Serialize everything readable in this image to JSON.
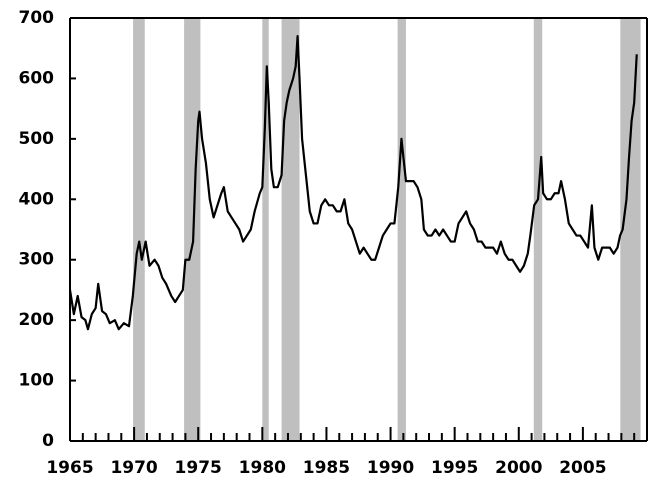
{
  "chart_data": {
    "type": "line",
    "x": [
      1965.0,
      1965.3,
      1965.6,
      1965.9,
      1966.2,
      1966.4,
      1966.7,
      1967.0,
      1967.2,
      1967.5,
      1967.8,
      1968.1,
      1968.5,
      1968.8,
      1969.2,
      1969.6,
      1969.9,
      1970.2,
      1970.4,
      1970.6,
      1970.9,
      1971.2,
      1971.6,
      1971.9,
      1972.2,
      1972.5,
      1972.9,
      1973.2,
      1973.5,
      1973.8,
      1974.0,
      1974.3,
      1974.6,
      1974.8,
      1975.0,
      1975.1,
      1975.3,
      1975.6,
      1975.9,
      1976.2,
      1976.5,
      1976.8,
      1977.0,
      1977.3,
      1977.6,
      1977.9,
      1978.2,
      1978.5,
      1978.8,
      1979.1,
      1979.4,
      1979.8,
      1980.0,
      1980.2,
      1980.35,
      1980.5,
      1980.7,
      1980.9,
      1981.2,
      1981.5,
      1981.7,
      1981.9,
      1982.1,
      1982.4,
      1982.6,
      1982.75,
      1982.9,
      1983.1,
      1983.4,
      1983.7,
      1984.0,
      1984.3,
      1984.6,
      1984.9,
      1985.2,
      1985.5,
      1985.8,
      1986.1,
      1986.4,
      1986.7,
      1987.0,
      1987.3,
      1987.6,
      1987.9,
      1988.2,
      1988.5,
      1988.8,
      1989.1,
      1989.4,
      1989.7,
      1990.0,
      1990.3,
      1990.6,
      1990.85,
      1991.0,
      1991.2,
      1991.5,
      1991.8,
      1992.1,
      1992.4,
      1992.6,
      1992.9,
      1993.2,
      1993.5,
      1993.8,
      1994.1,
      1994.4,
      1994.7,
      1995.0,
      1995.3,
      1995.6,
      1995.9,
      1996.2,
      1996.5,
      1996.8,
      1997.1,
      1997.4,
      1997.7,
      1998.0,
      1998.3,
      1998.6,
      1998.9,
      1999.2,
      1999.5,
      1999.8,
      2000.1,
      2000.4,
      2000.7,
      2000.9,
      2001.2,
      2001.5,
      2001.75,
      2001.9,
      2002.2,
      2002.5,
      2002.8,
      2003.1,
      2003.3,
      2003.6,
      2003.9,
      2004.2,
      2004.5,
      2004.8,
      2005.1,
      2005.4,
      2005.7,
      2005.9,
      2006.2,
      2006.5,
      2006.8,
      2007.1,
      2007.4,
      2007.7,
      2007.9,
      2008.1,
      2008.4,
      2008.6,
      2008.8,
      2009.0,
      2009.2
    ],
    "series": [
      {
        "color": "#000000",
        "values": [
          250,
          210,
          240,
          205,
          200,
          185,
          210,
          220,
          260,
          215,
          210,
          195,
          200,
          185,
          195,
          190,
          240,
          310,
          330,
          300,
          330,
          290,
          300,
          290,
          270,
          260,
          240,
          230,
          240,
          250,
          300,
          300,
          330,
          450,
          530,
          545,
          500,
          460,
          400,
          370,
          390,
          410,
          420,
          380,
          370,
          360,
          350,
          330,
          340,
          350,
          380,
          410,
          420,
          520,
          620,
          560,
          450,
          420,
          420,
          440,
          530,
          560,
          580,
          600,
          620,
          670,
          600,
          500,
          440,
          380,
          360,
          360,
          390,
          400,
          390,
          390,
          380,
          380,
          400,
          360,
          350,
          330,
          310,
          320,
          310,
          300,
          300,
          320,
          340,
          350,
          360,
          360,
          420,
          500,
          470,
          430,
          430,
          430,
          420,
          400,
          350,
          340,
          340,
          350,
          340,
          350,
          340,
          330,
          330,
          360,
          370,
          380,
          360,
          350,
          330,
          330,
          320,
          320,
          320,
          310,
          330,
          310,
          300,
          300,
          290,
          280,
          290,
          310,
          340,
          390,
          400,
          470,
          410,
          400,
          400,
          410,
          410,
          430,
          400,
          360,
          350,
          340,
          340,
          330,
          320,
          390,
          320,
          300,
          320,
          320,
          320,
          310,
          320,
          340,
          350,
          400,
          470,
          530,
          560,
          640
        ]
      }
    ],
    "recessions": [
      {
        "start": 1969.92,
        "end": 1970.83
      },
      {
        "start": 1973.9,
        "end": 1975.17
      },
      {
        "start": 1980.0,
        "end": 1980.5
      },
      {
        "start": 1981.5,
        "end": 1982.9
      },
      {
        "start": 1990.55,
        "end": 1991.2
      },
      {
        "start": 2001.17,
        "end": 2001.83
      },
      {
        "start": 2007.92,
        "end": 2009.5
      }
    ],
    "recession_color": "#bfbfbf",
    "xlim": [
      1965,
      2010
    ],
    "ylim": [
      0,
      700
    ],
    "xticks": [
      1965,
      1970,
      1975,
      1980,
      1985,
      1990,
      1995,
      2000,
      2005
    ],
    "xminorticks": [
      1966,
      1967,
      1968,
      1969,
      1971,
      1972,
      1973,
      1974,
      1976,
      1977,
      1978,
      1979,
      1981,
      1982,
      1983,
      1984,
      1986,
      1987,
      1988,
      1989,
      1991,
      1992,
      1993,
      1994,
      1996,
      1997,
      1998,
      1999,
      2001,
      2002,
      2003,
      2004,
      2006,
      2007,
      2008,
      2009
    ],
    "yticks": [
      0,
      100,
      200,
      300,
      400,
      500,
      600,
      700
    ]
  }
}
